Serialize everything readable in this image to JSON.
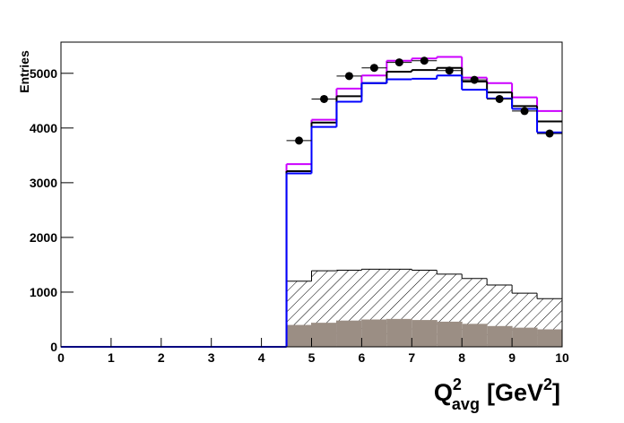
{
  "chart_data": {
    "type": "histogram",
    "y_label": "Entries",
    "x_label": {
      "base": "Q",
      "sup": "2",
      "sub": "avg",
      "unit": "[GeV",
      "unit_sup": "2",
      "close": "]"
    },
    "bins": [
      0,
      0.5,
      1,
      1.5,
      2,
      2.5,
      3,
      3.5,
      4,
      4.5,
      5,
      5.5,
      6,
      6.5,
      7,
      7.5,
      8,
      8.5,
      9,
      9.5,
      10
    ],
    "xlim": [
      0,
      10
    ],
    "xticks": [
      0,
      1,
      2,
      3,
      4,
      5,
      6,
      7,
      8,
      9,
      10
    ],
    "ylim": [
      0,
      5570
    ],
    "yticks": [
      0,
      1000,
      2000,
      3000,
      4000,
      5000
    ],
    "series": [
      {
        "style": "hatch",
        "color": "#000000",
        "values": [
          0,
          0,
          0,
          0,
          0,
          0,
          0,
          0,
          0,
          1200,
          1390,
          1400,
          1420,
          1420,
          1400,
          1330,
          1250,
          1130,
          980,
          880
        ]
      },
      {
        "style": "fill",
        "color": "#9b8e84",
        "values": [
          0,
          0,
          0,
          0,
          0,
          0,
          0,
          0,
          0,
          400,
          440,
          480,
          500,
          510,
          490,
          460,
          420,
          380,
          350,
          320
        ]
      },
      {
        "style": "line",
        "color": "#cc00ff",
        "values": [
          0,
          0,
          0,
          0,
          0,
          0,
          0,
          0,
          0,
          3340,
          4150,
          4720,
          4960,
          5230,
          5270,
          5300,
          4920,
          4820,
          4560,
          4310
        ]
      },
      {
        "style": "line",
        "color": "#000000",
        "values": [
          0,
          0,
          0,
          0,
          0,
          0,
          0,
          0,
          0,
          3210,
          4100,
          4580,
          4820,
          5030,
          5060,
          5100,
          4850,
          4650,
          4400,
          4120
        ]
      },
      {
        "style": "line",
        "color": "#0000ff",
        "values": [
          0,
          0,
          0,
          0,
          0,
          0,
          0,
          0,
          0,
          3170,
          4020,
          4480,
          4820,
          4890,
          4900,
          4960,
          4700,
          4540,
          4350,
          3920
        ]
      },
      {
        "style": "points",
        "color": "#000000",
        "values": [
          null,
          null,
          null,
          null,
          null,
          null,
          null,
          null,
          null,
          3770,
          4530,
          4950,
          5100,
          5200,
          5230,
          5050,
          4880,
          4530,
          4310,
          3900
        ]
      }
    ]
  }
}
